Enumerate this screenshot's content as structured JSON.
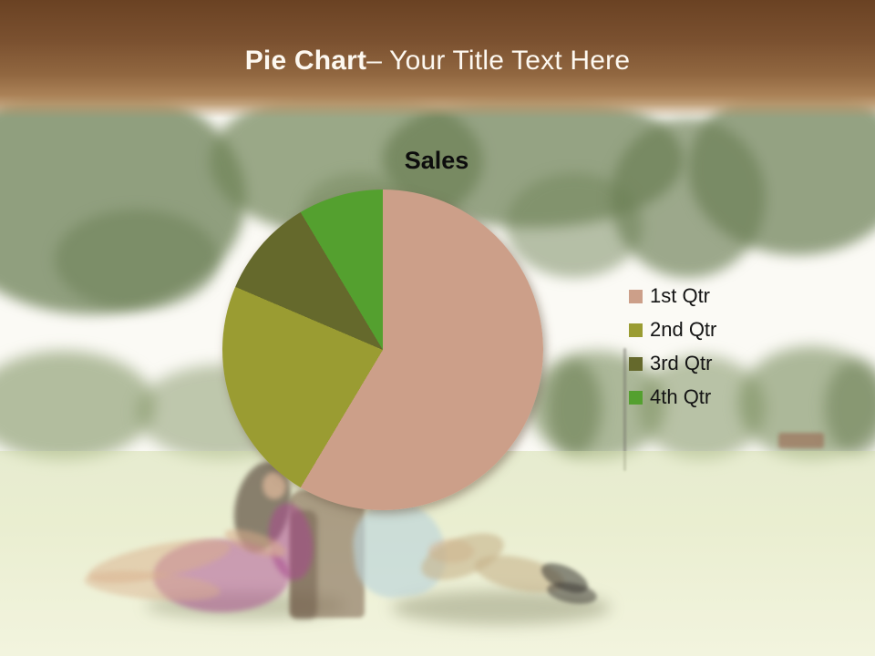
{
  "header": {
    "title_bold": "Pie Chart",
    "title_rest": "– Your Title Text Here"
  },
  "chart_data": {
    "type": "pie",
    "title": "Sales",
    "categories": [
      "1st Qtr",
      "2nd Qtr",
      "3rd Qtr",
      "4th Qtr"
    ],
    "values": [
      8.2,
      3.2,
      1.4,
      1.2
    ],
    "colors": [
      "#cc9f89",
      "#9a9c32",
      "#65692c",
      "#54a02f"
    ],
    "legend_position": "right",
    "start_angle_deg": 0
  },
  "theme": {
    "banner_top_color": "#6a4223",
    "banner_bottom_color": "#b99469",
    "title_text_color": "#fdf8f0",
    "chart_text_color": "#0d0d0d"
  }
}
